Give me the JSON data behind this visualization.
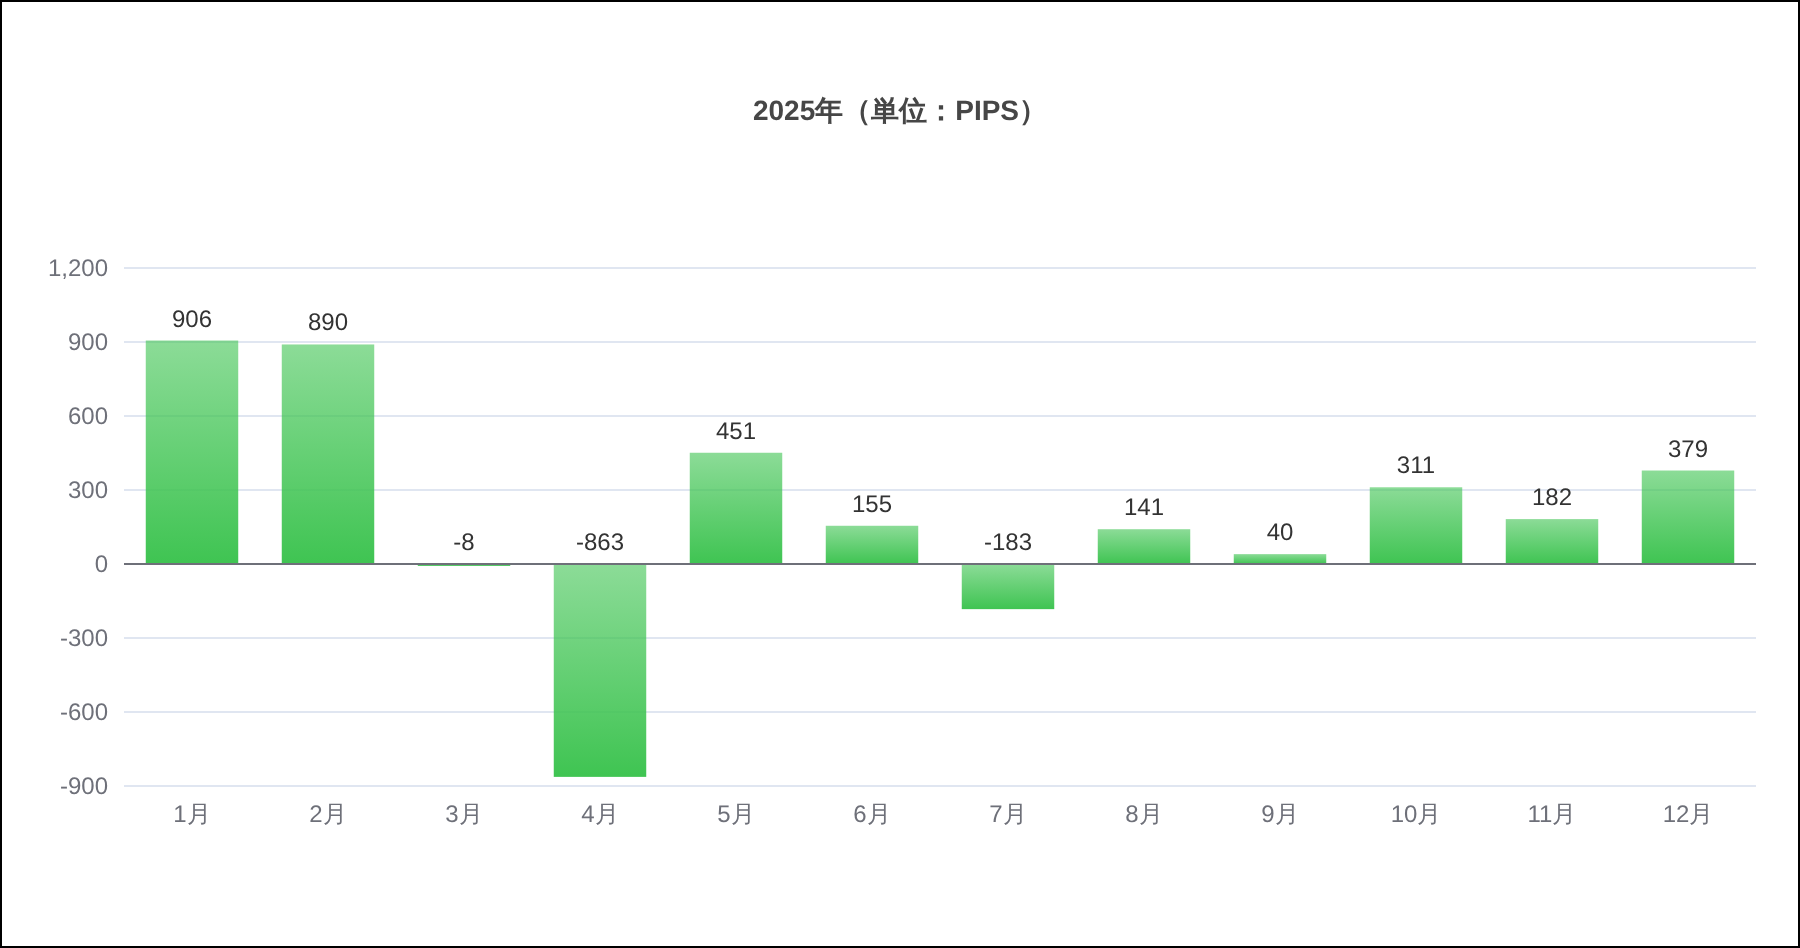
{
  "chart_data": {
    "type": "bar",
    "title": "2025年（単位：PIPS）",
    "categories": [
      "1月",
      "2月",
      "3月",
      "4月",
      "5月",
      "6月",
      "7月",
      "8月",
      "9月",
      "10月",
      "11月",
      "12月"
    ],
    "values": [
      906,
      890,
      -8,
      -863,
      451,
      155,
      -183,
      141,
      40,
      311,
      182,
      379
    ],
    "color": "#3fc452",
    "ylim": [
      -900,
      1200
    ],
    "yticks": [
      -900,
      -600,
      -300,
      0,
      300,
      600,
      900,
      {
        "value": 1200,
        "label": "1,200"
      }
    ],
    "grid": "y",
    "data_labels": true
  }
}
